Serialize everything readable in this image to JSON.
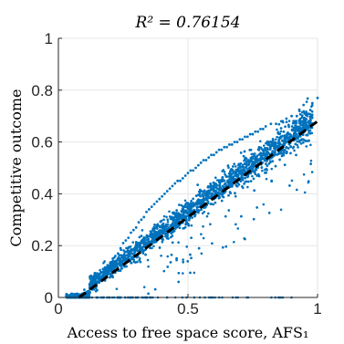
{
  "chart_data": {
    "type": "scatter",
    "title": "R² = 0.76154",
    "xlabel": "Access to free space score, AFS₁",
    "ylabel": "Competitive outcome",
    "xlim": [
      0,
      1
    ],
    "ylim": [
      0,
      1
    ],
    "xticks": [
      "0",
      "0.5",
      "1"
    ],
    "yticks": [
      "0",
      "0.2",
      "0.4",
      "0.6",
      "0.8",
      "1"
    ],
    "grid": true,
    "point_color": "#0072BD",
    "fit_line": {
      "style": "dashed",
      "color": "#000000",
      "x": [
        0.08,
        1.0
      ],
      "y": [
        0.0,
        0.68
      ]
    },
    "series": [
      {
        "values_description_free": true,
        "x": [
          0.05,
          0.08,
          0.1,
          0.12,
          0.14,
          0.15,
          0.16,
          0.18,
          0.19,
          0.2,
          0.21,
          0.22,
          0.23,
          0.24,
          0.25,
          0.26,
          0.27,
          0.28,
          0.29,
          0.3,
          0.31,
          0.32,
          0.33,
          0.34,
          0.35,
          0.36,
          0.37,
          0.38,
          0.39,
          0.4,
          0.41,
          0.42,
          0.43,
          0.44,
          0.45,
          0.46,
          0.47,
          0.48,
          0.49,
          0.5,
          0.51,
          0.52,
          0.53,
          0.54,
          0.55,
          0.56,
          0.57,
          0.58,
          0.59,
          0.6,
          0.61,
          0.62,
          0.63,
          0.64,
          0.65,
          0.66,
          0.67,
          0.68,
          0.69,
          0.7,
          0.71,
          0.72,
          0.73,
          0.74,
          0.75,
          0.76,
          0.77,
          0.78,
          0.79,
          0.8,
          0.82,
          0.84,
          0.86,
          0.88,
          0.9,
          0.92,
          0.95,
          0.98,
          1.0
        ],
        "y": [
          0.0,
          0.01,
          0.03,
          0.05,
          0.06,
          0.08,
          0.09,
          0.11,
          0.12,
          0.13,
          0.15,
          0.16,
          0.17,
          0.19,
          0.21,
          0.22,
          0.23,
          0.25,
          0.26,
          0.27,
          0.29,
          0.3,
          0.31,
          0.33,
          0.34,
          0.35,
          0.36,
          0.37,
          0.38,
          0.39,
          0.4,
          0.41,
          0.42,
          0.43,
          0.44,
          0.45,
          0.45,
          0.46,
          0.47,
          0.48,
          0.49,
          0.49,
          0.5,
          0.51,
          0.52,
          0.53,
          0.53,
          0.54,
          0.55,
          0.55,
          0.56,
          0.57,
          0.57,
          0.58,
          0.58,
          0.59,
          0.59,
          0.6,
          0.6,
          0.61,
          0.61,
          0.62,
          0.62,
          0.63,
          0.63,
          0.64,
          0.64,
          0.65,
          0.65,
          0.66,
          0.67,
          0.67,
          0.68,
          0.69,
          0.7,
          0.7,
          0.71,
          0.75,
          0.77
        ]
      }
    ]
  }
}
